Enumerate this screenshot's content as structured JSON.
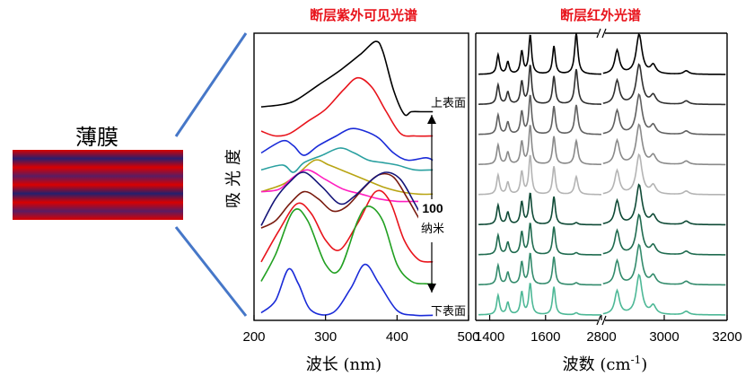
{
  "film": {
    "label": "薄膜",
    "stripe_colors": [
      "#d90000",
      "#2a1e6e",
      "#d90000",
      "#5a1c62",
      "#d90000",
      "#24206e",
      "#d90000",
      "#5a1c62",
      "#d90000"
    ]
  },
  "chart_data": [
    {
      "type": "line",
      "title": "断层紫外可见光谱",
      "xlabel": "波长 (nm)",
      "ylabel": "吸光度",
      "xlim": [
        200,
        500
      ],
      "xticks": [
        "200",
        "300",
        "400",
        "500"
      ],
      "plotted_x_range": [
        210,
        450
      ],
      "annotations": {
        "top": "上表面",
        "bottom": "下表面",
        "thickness_value": "100",
        "thickness_unit": "纳米"
      },
      "series": [
        {
          "color": "#000000",
          "offset": 0.82,
          "points": [
            [
              210,
              0.05
            ],
            [
              240,
              0.06
            ],
            [
              260,
              0.08
            ],
            [
              290,
              0.14
            ],
            [
              320,
              0.2
            ],
            [
              350,
              0.27
            ],
            [
              370,
              0.32
            ],
            [
              380,
              0.28
            ],
            [
              395,
              0.12
            ],
            [
              410,
              0.02
            ],
            [
              420,
              0.03
            ],
            [
              435,
              0.03
            ],
            [
              450,
              0.03
            ]
          ]
        },
        {
          "color": "#e8141c",
          "offset": 0.73,
          "points": [
            [
              210,
              0.04
            ],
            [
              230,
              0.02
            ],
            [
              250,
              0.03
            ],
            [
              275,
              0.08
            ],
            [
              300,
              0.13
            ],
            [
              325,
              0.21
            ],
            [
              345,
              0.26
            ],
            [
              365,
              0.22
            ],
            [
              385,
              0.12
            ],
            [
              405,
              0.03
            ],
            [
              425,
              0.02
            ],
            [
              450,
              0.02
            ]
          ]
        },
        {
          "color": "#1a2bd8",
          "offset": 0.62,
          "points": [
            [
              210,
              0.06
            ],
            [
              240,
              0.11
            ],
            [
              255,
              0.09
            ],
            [
              270,
              0.05
            ],
            [
              290,
              0.09
            ],
            [
              315,
              0.13
            ],
            [
              335,
              0.16
            ],
            [
              355,
              0.15
            ],
            [
              375,
              0.12
            ],
            [
              395,
              0.06
            ],
            [
              415,
              0.03
            ],
            [
              440,
              0.04
            ],
            [
              450,
              0.03
            ]
          ]
        },
        {
          "color": "#2aa0a0",
          "offset": 0.58,
          "points": [
            [
              210,
              0.03
            ],
            [
              240,
              0.05
            ],
            [
              255,
              0.02
            ],
            [
              270,
              0.06
            ],
            [
              295,
              0.09
            ],
            [
              320,
              0.12
            ],
            [
              340,
              0.1
            ],
            [
              360,
              0.07
            ],
            [
              380,
              0.06
            ],
            [
              400,
              0.05
            ],
            [
              425,
              0.03
            ],
            [
              450,
              0.03
            ]
          ]
        },
        {
          "color": "#b8a412",
          "offset": 0.46,
          "points": [
            [
              210,
              0.06
            ],
            [
              240,
              0.09
            ],
            [
              260,
              0.13
            ],
            [
              285,
              0.19
            ],
            [
              305,
              0.17
            ],
            [
              330,
              0.14
            ],
            [
              355,
              0.11
            ],
            [
              380,
              0.08
            ],
            [
              405,
              0.06
            ],
            [
              430,
              0.05
            ],
            [
              450,
              0.05
            ]
          ]
        },
        {
          "color": "#ff1fc0",
          "offset": 0.45,
          "points": [
            [
              210,
              0.07
            ],
            [
              235,
              0.08
            ],
            [
              255,
              0.13
            ],
            [
              275,
              0.16
            ],
            [
              300,
              0.12
            ],
            [
              325,
              0.08
            ],
            [
              350,
              0.06
            ],
            [
              375,
              0.04
            ],
            [
              400,
              0.03
            ],
            [
              425,
              0.03
            ],
            [
              450,
              0.03
            ]
          ]
        },
        {
          "color": "#7a1c10",
          "offset": 0.32,
          "points": [
            [
              210,
              0.05
            ],
            [
              230,
              0.08
            ],
            [
              250,
              0.15
            ],
            [
              270,
              0.2
            ],
            [
              290,
              0.17
            ],
            [
              310,
              0.12
            ],
            [
              330,
              0.14
            ],
            [
              355,
              0.22
            ],
            [
              375,
              0.27
            ],
            [
              395,
              0.26
            ],
            [
              415,
              0.17
            ],
            [
              435,
              0.07
            ],
            [
              450,
              0.03
            ]
          ]
        },
        {
          "color": "#141478",
          "offset": 0.34,
          "points": [
            [
              210,
              0.04
            ],
            [
              230,
              0.15
            ],
            [
              250,
              0.22
            ],
            [
              270,
              0.26
            ],
            [
              295,
              0.2
            ],
            [
              320,
              0.13
            ],
            [
              340,
              0.16
            ],
            [
              365,
              0.23
            ],
            [
              385,
              0.26
            ],
            [
              405,
              0.23
            ],
            [
              425,
              0.13
            ],
            [
              440,
              0.05
            ],
            [
              450,
              0.03
            ]
          ]
        },
        {
          "color": "#e8141c",
          "offset": 0.2,
          "points": [
            [
              210,
              0.03
            ],
            [
              235,
              0.16
            ],
            [
              260,
              0.27
            ],
            [
              280,
              0.23
            ],
            [
              300,
              0.12
            ],
            [
              320,
              0.08
            ],
            [
              345,
              0.19
            ],
            [
              370,
              0.32
            ],
            [
              390,
              0.28
            ],
            [
              410,
              0.12
            ],
            [
              430,
              0.04
            ],
            [
              450,
              0.03
            ]
          ]
        },
        {
          "color": "#22a022",
          "offset": 0.12,
          "points": [
            [
              210,
              0.03
            ],
            [
              230,
              0.14
            ],
            [
              255,
              0.32
            ],
            [
              275,
              0.28
            ],
            [
              300,
              0.1
            ],
            [
              320,
              0.08
            ],
            [
              345,
              0.28
            ],
            [
              360,
              0.34
            ],
            [
              380,
              0.28
            ],
            [
              400,
              0.1
            ],
            [
              420,
              0.03
            ],
            [
              440,
              0.02
            ],
            [
              450,
              0.02
            ]
          ]
        },
        {
          "color": "#1a2bd8",
          "offset": 0.0,
          "points": [
            [
              210,
              0.02
            ],
            [
              230,
              0.07
            ],
            [
              248,
              0.2
            ],
            [
              262,
              0.14
            ],
            [
              280,
              0.03
            ],
            [
              310,
              0.02
            ],
            [
              335,
              0.12
            ],
            [
              355,
              0.22
            ],
            [
              375,
              0.14
            ],
            [
              400,
              0.03
            ],
            [
              425,
              0.01
            ],
            [
              450,
              0.01
            ]
          ]
        }
      ]
    },
    {
      "type": "line",
      "title": "断层红外光谱",
      "xlabel": "波数 (cm-1)",
      "ylabel": "",
      "xlim": [
        1350,
        3200
      ],
      "axis_break": [
        1800,
        2800
      ],
      "xticks": [
        "1400",
        "1600",
        "2800",
        "3000",
        "3200"
      ],
      "series": [
        {
          "color": "#000000",
          "offset": 8
        },
        {
          "color": "#303030",
          "offset": 7
        },
        {
          "color": "#606060",
          "offset": 6
        },
        {
          "color": "#8a8a8a",
          "offset": 5
        },
        {
          "color": "#b4b4b4",
          "offset": 4
        },
        {
          "color": "#0f4a36",
          "offset": 3
        },
        {
          "color": "#1f6b4f",
          "offset": 2
        },
        {
          "color": "#338b6c",
          "offset": 1
        },
        {
          "color": "#4db896",
          "offset": 0
        }
      ],
      "peaks": [
        {
          "x": 1430,
          "height": 0.45
        },
        {
          "x": 1465,
          "height": 0.28
        },
        {
          "x": 1515,
          "height": 0.52
        },
        {
          "x": 1545,
          "height": 0.9
        },
        {
          "x": 1630,
          "height": 0.65
        },
        {
          "x": 1710,
          "height": 0.95
        },
        {
          "x": 2850,
          "height": 0.55
        },
        {
          "x": 2920,
          "height": 0.92
        },
        {
          "x": 2965,
          "height": 0.2
        },
        {
          "x": 3070,
          "height": 0.08
        }
      ]
    }
  ]
}
